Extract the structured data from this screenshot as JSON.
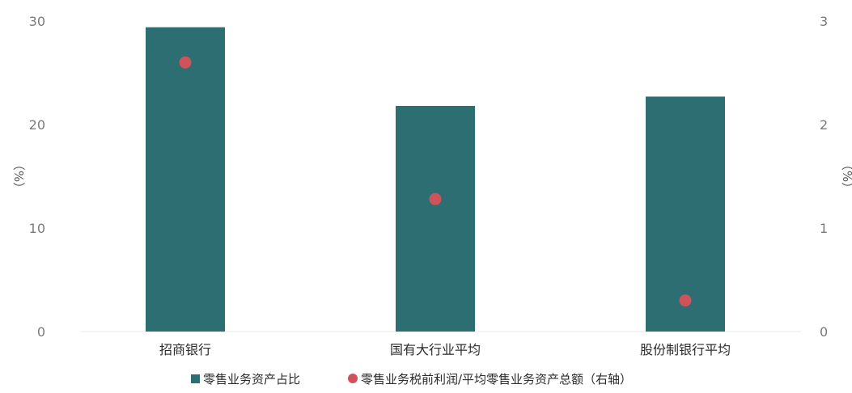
{
  "chart_data": {
    "type": "bar",
    "categories": [
      "招商银行",
      "国有大行业平均",
      "股份制银行平均"
    ],
    "series": [
      {
        "name": "零售业务资产占比",
        "type": "bar",
        "axis": "left",
        "values": [
          29.4,
          21.8,
          22.7
        ],
        "color": "#2d6e72"
      },
      {
        "name": "零售业务税前利润/平均零售业务资产总额（右轴）",
        "type": "scatter",
        "axis": "right",
        "values": [
          2.6,
          1.28,
          0.3
        ],
        "color": "#d0525a"
      }
    ],
    "left_axis": {
      "label": "（%）",
      "ylim": [
        0,
        30
      ],
      "ticks": [
        "0",
        "10",
        "20",
        "30"
      ]
    },
    "right_axis": {
      "label": "（%）",
      "ylim": [
        0,
        3
      ],
      "ticks": [
        "0",
        "1",
        "2",
        "3"
      ]
    },
    "legend_position": "bottom",
    "grid": false
  }
}
